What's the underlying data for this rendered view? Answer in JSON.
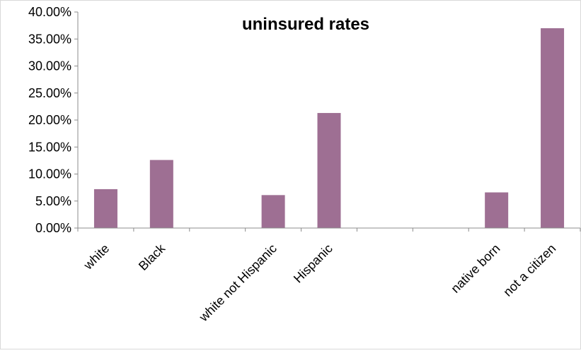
{
  "chart_data": {
    "type": "bar",
    "title": "uninsured rates",
    "xlabel": "",
    "ylabel": "",
    "ylim": [
      0,
      0.4
    ],
    "y_tick_values": [
      0,
      0.05,
      0.1,
      0.15,
      0.2,
      0.25,
      0.3,
      0.35,
      0.4
    ],
    "y_tick_labels": [
      "0.00%",
      "5.00%",
      "10.00%",
      "15.00%",
      "20.00%",
      "25.00%",
      "30.00%",
      "35.00%",
      "40.00%"
    ],
    "categories": [
      "white",
      "Black",
      "",
      "white not Hispanic",
      "Hispanic",
      "",
      "",
      "native born",
      "not a citizen"
    ],
    "values": [
      0.072,
      0.126,
      null,
      0.061,
      0.213,
      null,
      null,
      0.066,
      0.37
    ],
    "bar_color": "#9e6f93",
    "grid": false,
    "legend": "none"
  }
}
